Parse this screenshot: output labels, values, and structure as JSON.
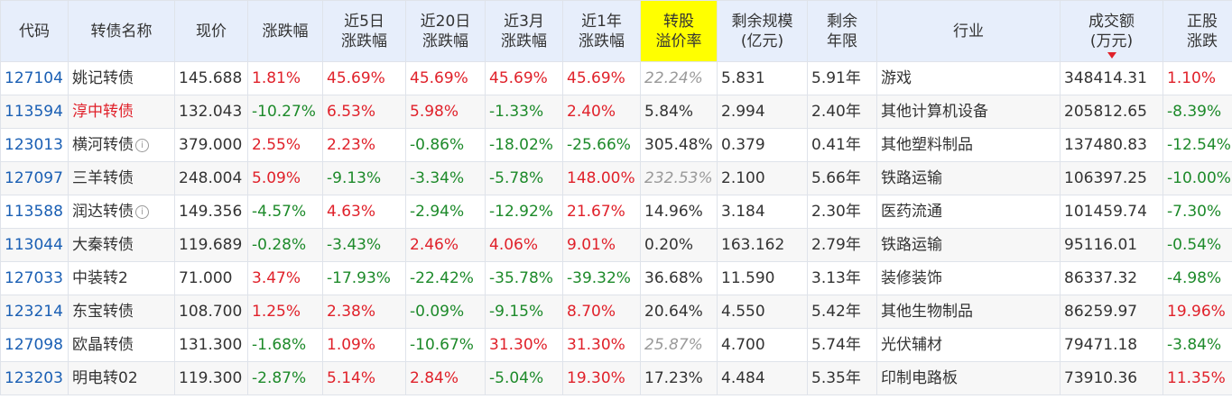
{
  "header": {
    "code": "代码",
    "name": "转债名称",
    "price": "现价",
    "change": "涨跌幅",
    "d5_l1": "近5日",
    "d5_l2": "涨跌幅",
    "d20_l1": "近20日",
    "d20_l2": "涨跌幅",
    "m3_l1": "近3月",
    "m3_l2": "涨跌幅",
    "y1_l1": "近1年",
    "y1_l2": "涨跌幅",
    "premium_l1": "转股",
    "premium_l2": "溢价率",
    "scale_l1": "剩余规模",
    "scale_l2": "(亿元)",
    "term_l1": "剩余",
    "term_l2": "年限",
    "industry": "行业",
    "amount_l1": "成交额",
    "amount_l2": "(万元)",
    "stock_l1": "正股",
    "stock_l2": "涨跌"
  },
  "rows": [
    {
      "code": "127104",
      "name": "姚记转债",
      "price": "145.688",
      "chg": "1.81%",
      "d5": "45.69%",
      "d20": "45.69%",
      "m3": "45.69%",
      "y1": "45.69%",
      "premium": "22.24%",
      "scale": "5.831",
      "term": "5.91年",
      "industry": "游戏",
      "amount": "348414.31",
      "stock": "1.10%"
    },
    {
      "code": "113594",
      "name": "淳中转债",
      "price": "132.043",
      "chg": "-10.27%",
      "d5": "6.53%",
      "d20": "5.98%",
      "m3": "-1.33%",
      "y1": "2.40%",
      "premium": "5.84%",
      "scale": "2.994",
      "term": "2.40年",
      "industry": "其他计算机设备",
      "amount": "205812.65",
      "stock": "-8.39%"
    },
    {
      "code": "123013",
      "name": "横河转债",
      "price": "379.000",
      "chg": "2.55%",
      "d5": "2.23%",
      "d20": "-0.86%",
      "m3": "-18.02%",
      "y1": "-25.66%",
      "premium": "305.48%",
      "scale": "0.379",
      "term": "0.41年",
      "industry": "其他塑料制品",
      "amount": "137480.83",
      "stock": "-12.54%"
    },
    {
      "code": "127097",
      "name": "三羊转债",
      "price": "248.004",
      "chg": "5.09%",
      "d5": "-9.13%",
      "d20": "-3.34%",
      "m3": "-5.78%",
      "y1": "148.00%",
      "premium": "232.53%",
      "scale": "2.100",
      "term": "5.66年",
      "industry": "铁路运输",
      "amount": "106397.25",
      "stock": "-10.00%"
    },
    {
      "code": "113588",
      "name": "润达转债",
      "price": "149.356",
      "chg": "-4.57%",
      "d5": "4.63%",
      "d20": "-2.94%",
      "m3": "-12.92%",
      "y1": "21.67%",
      "premium": "14.96%",
      "scale": "3.184",
      "term": "2.30年",
      "industry": "医药流通",
      "amount": "101459.74",
      "stock": "-7.30%"
    },
    {
      "code": "113044",
      "name": "大秦转债",
      "price": "119.689",
      "chg": "-0.28%",
      "d5": "-3.43%",
      "d20": "2.46%",
      "m3": "4.06%",
      "y1": "9.01%",
      "premium": "0.20%",
      "scale": "163.162",
      "term": "2.79年",
      "industry": "铁路运输",
      "amount": "95116.01",
      "stock": "-0.54%"
    },
    {
      "code": "127033",
      "name": "中装转2",
      "price": "71.000",
      "chg": "3.47%",
      "d5": "-17.93%",
      "d20": "-22.42%",
      "m3": "-35.78%",
      "y1": "-39.32%",
      "premium": "36.68%",
      "scale": "11.590",
      "term": "3.13年",
      "industry": "装修装饰",
      "amount": "86337.32",
      "stock": "-4.98%"
    },
    {
      "code": "123214",
      "name": "东宝转债",
      "price": "108.700",
      "chg": "1.25%",
      "d5": "2.38%",
      "d20": "-0.09%",
      "m3": "-9.15%",
      "y1": "8.70%",
      "premium": "20.64%",
      "scale": "4.550",
      "term": "5.42年",
      "industry": "其他生物制品",
      "amount": "86259.97",
      "stock": "19.96%"
    },
    {
      "code": "127098",
      "name": "欧晶转债",
      "price": "131.300",
      "chg": "-1.68%",
      "d5": "1.09%",
      "d20": "-10.67%",
      "m3": "31.30%",
      "y1": "31.30%",
      "premium": "25.87%",
      "scale": "4.700",
      "term": "5.74年",
      "industry": "光伏辅材",
      "amount": "79471.18",
      "stock": "-3.84%"
    },
    {
      "code": "123203",
      "name": "明电转02",
      "price": "119.300",
      "chg": "-2.87%",
      "d5": "5.14%",
      "d20": "2.84%",
      "m3": "-5.04%",
      "y1": "19.30%",
      "premium": "17.23%",
      "scale": "4.484",
      "term": "5.35年",
      "industry": "印制电路板",
      "amount": "73910.36",
      "stock": "11.35%"
    }
  ],
  "colors": {
    "up": "#e0212a",
    "down": "#1d8a2a",
    "code": "#1a5fb4",
    "header_bg": "#e7eefb",
    "highlight": "#ffff00"
  },
  "sort": {
    "column": "amount",
    "direction": "desc",
    "icon": "sort-down-arrow-icon"
  }
}
